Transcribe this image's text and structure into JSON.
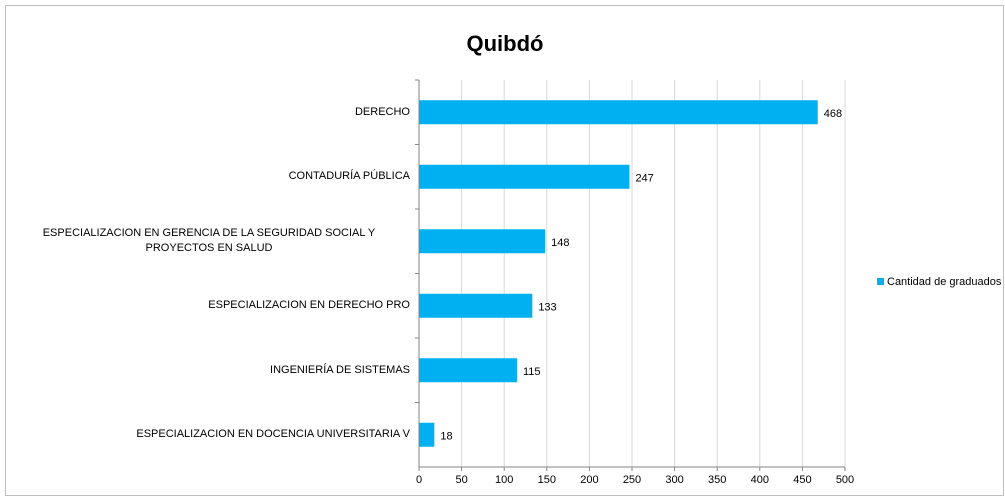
{
  "chart_data": {
    "type": "barh",
    "title": "Quibdó",
    "categories": [
      "DERECHO",
      "CONTADURÍA PÚBLICA",
      "ESPECIALIZACION EN GERENCIA DE LA SEGURIDAD SOCIAL Y PROYECTOS EN SALUD",
      "ESPECIALIZACION EN DERECHO PRO",
      "INGENIERÍA DE SISTEMAS",
      "ESPECIALIZACION EN DOCENCIA UNIVERSITARIA V"
    ],
    "series": [
      {
        "name": "Cantidad de graduados",
        "color": "#00b0f0",
        "values": [
          468,
          247,
          148,
          133,
          115,
          18
        ]
      }
    ],
    "xlim": [
      0,
      500
    ],
    "xticks": [
      0,
      50,
      100,
      150,
      200,
      250,
      300,
      350,
      400,
      450,
      500
    ],
    "grid": true,
    "legend": "right"
  }
}
